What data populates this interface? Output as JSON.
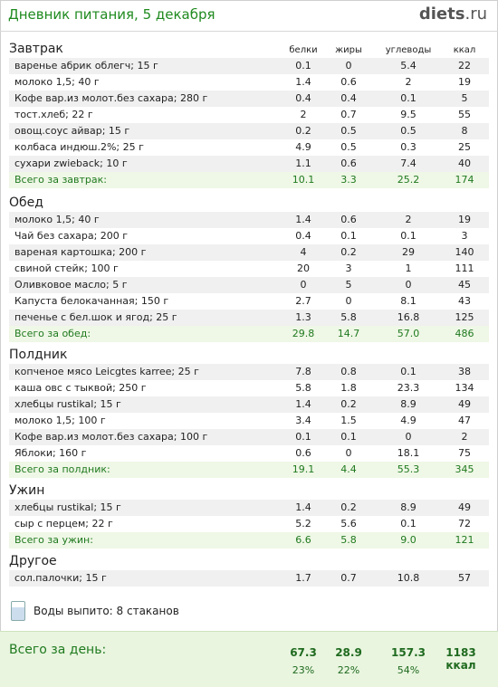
{
  "header": {
    "title": "Дневник питания, 5 декабря",
    "logo_main": "diets",
    "logo_suffix": ".ru"
  },
  "columns": {
    "protein": "белки",
    "fat": "жиры",
    "carbs": "углеводы",
    "kcal": "ккал"
  },
  "sections": [
    {
      "title": "Завтрак",
      "items": [
        [
          "варенье абрик облегч; 15 г",
          "0.1",
          "0",
          "5.4",
          "22"
        ],
        [
          "молоко 1,5; 40 г",
          "1.4",
          "0.6",
          "2",
          "19"
        ],
        [
          "Кофе вар.из молот.без сахара; 280 г",
          "0.4",
          "0.4",
          "0.1",
          "5"
        ],
        [
          "тост.хлеб; 22 г",
          "2",
          "0.7",
          "9.5",
          "55"
        ],
        [
          "овощ.соус айвар; 15 г",
          "0.2",
          "0.5",
          "0.5",
          "8"
        ],
        [
          "колбаса индюш.2%; 25 г",
          "4.9",
          "0.5",
          "0.3",
          "25"
        ],
        [
          "сухари zwieback; 10 г",
          "1.1",
          "0.6",
          "7.4",
          "40"
        ]
      ],
      "total": [
        "Всего за завтрак:",
        "10.1",
        "3.3",
        "25.2",
        "174"
      ]
    },
    {
      "title": "Обед",
      "items": [
        [
          "молоко 1,5; 40 г",
          "1.4",
          "0.6",
          "2",
          "19"
        ],
        [
          "Чай без сахара; 200 г",
          "0.4",
          "0.1",
          "0.1",
          "3"
        ],
        [
          "вареная  картошка; 200 г",
          "4",
          "0.2",
          "29",
          "140"
        ],
        [
          "свиной стейк; 100 г",
          "20",
          "3",
          "1",
          "111"
        ],
        [
          "Оливковое масло; 5 г",
          "0",
          "5",
          "0",
          "45"
        ],
        [
          "Капуста белокачанная; 150 г",
          "2.7",
          "0",
          "8.1",
          "43"
        ],
        [
          "печенье с бел.шок и ягод; 25 г",
          "1.3",
          "5.8",
          "16.8",
          "125"
        ]
      ],
      "total": [
        "Всего за обед:",
        "29.8",
        "14.7",
        "57.0",
        "486"
      ]
    },
    {
      "title": "Полдник",
      "items": [
        [
          "копченое мясо Leicgtes karree; 25 г",
          "7.8",
          "0.8",
          "0.1",
          "38"
        ],
        [
          "каша овс с тыквой; 250 г",
          "5.8",
          "1.8",
          "23.3",
          "134"
        ],
        [
          "хлебцы rustikal; 15 г",
          "1.4",
          "0.2",
          "8.9",
          "49"
        ],
        [
          "молоко 1,5; 100 г",
          "3.4",
          "1.5",
          "4.9",
          "47"
        ],
        [
          "Кофе вар.из молот.без сахара; 100 г",
          "0.1",
          "0.1",
          "0",
          "2"
        ],
        [
          "Яблоки; 160 г",
          "0.6",
          "0",
          "18.1",
          "75"
        ]
      ],
      "total": [
        "Всего за полдник:",
        "19.1",
        "4.4",
        "55.3",
        "345"
      ]
    },
    {
      "title": "Ужин",
      "items": [
        [
          "хлебцы rustikal; 15 г",
          "1.4",
          "0.2",
          "8.9",
          "49"
        ],
        [
          "сыр с перцем; 22 г",
          "5.2",
          "5.6",
          "0.1",
          "72"
        ]
      ],
      "total": [
        "Всего за ужин:",
        "6.6",
        "5.8",
        "9.0",
        "121"
      ]
    },
    {
      "title": "Другое",
      "items": [
        [
          "сол.палочки; 15 г",
          "1.7",
          "0.7",
          "10.8",
          "57"
        ]
      ],
      "total": null
    }
  ],
  "water": {
    "text": "Воды выпито: 8 стаканов",
    "icon": "glass-icon"
  },
  "day": {
    "label": "Всего за день:",
    "protein": "67.3",
    "fat": "28.9",
    "carbs": "157.3",
    "kcal": "1183 ккал",
    "protein_pct": "23%",
    "fat_pct": "22%",
    "carbs_pct": "54%"
  }
}
